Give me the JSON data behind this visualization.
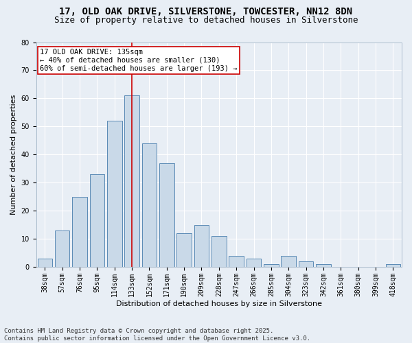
{
  "title_line1": "17, OLD OAK DRIVE, SILVERSTONE, TOWCESTER, NN12 8DN",
  "title_line2": "Size of property relative to detached houses in Silverstone",
  "xlabel": "Distribution of detached houses by size in Silverstone",
  "ylabel": "Number of detached properties",
  "bar_labels": [
    "38sqm",
    "57sqm",
    "76sqm",
    "95sqm",
    "114sqm",
    "133sqm",
    "152sqm",
    "171sqm",
    "190sqm",
    "209sqm",
    "228sqm",
    "247sqm",
    "266sqm",
    "285sqm",
    "304sqm",
    "323sqm",
    "342sqm",
    "361sqm",
    "380sqm",
    "399sqm",
    "418sqm"
  ],
  "bar_values": [
    3,
    13,
    25,
    33,
    52,
    61,
    44,
    37,
    12,
    15,
    11,
    4,
    3,
    1,
    4,
    2,
    1,
    0,
    0,
    0,
    1
  ],
  "bar_color": "#c9d9e8",
  "bar_edge_color": "#5a8ab5",
  "background_color": "#e8eef5",
  "grid_color": "#ffffff",
  "vline_x_index": 5,
  "vline_color": "#cc0000",
  "annotation_text": "17 OLD OAK DRIVE: 135sqm\n← 40% of detached houses are smaller (130)\n60% of semi-detached houses are larger (193) →",
  "annotation_box_color": "#ffffff",
  "annotation_box_edge": "#cc0000",
  "ylim": [
    0,
    80
  ],
  "yticks": [
    0,
    10,
    20,
    30,
    40,
    50,
    60,
    70,
    80
  ],
  "footnote": "Contains HM Land Registry data © Crown copyright and database right 2025.\nContains public sector information licensed under the Open Government Licence v3.0.",
  "title_fontsize": 10,
  "subtitle_fontsize": 9,
  "axis_label_fontsize": 8,
  "tick_fontsize": 7,
  "annotation_fontsize": 7.5,
  "footnote_fontsize": 6.5
}
